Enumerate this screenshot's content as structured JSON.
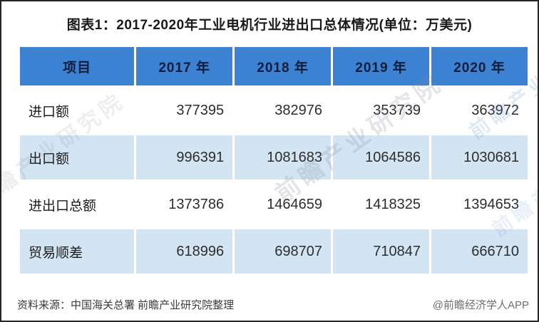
{
  "title": "图表1：2017-2020年工业电机行业进出口总体情况(单位：万美元)",
  "colors": {
    "header_bg": "#3c82d2",
    "header_text": "#0e1d3a",
    "alt_row_bg": "#d3e4f2",
    "row_bg": "#ffffff",
    "body_text": "#2d2d2d",
    "title_text": "#1a1a1a",
    "border": "#262626"
  },
  "watermark": {
    "text": "前瞻产业研究院"
  },
  "chart_data": {
    "type": "table",
    "title": "图表1：2017-2020年工业电机行业进出口总体情况",
    "unit": "万美元",
    "columns": [
      "项目",
      "2017 年",
      "2018 年",
      "2019 年",
      "2020 年"
    ],
    "rows": [
      {
        "label": "进口额",
        "values": [
          377395,
          382976,
          353739,
          363972
        ]
      },
      {
        "label": "出口额",
        "values": [
          996391,
          1081683,
          1064586,
          1030681
        ]
      },
      {
        "label": "进出口总额",
        "values": [
          1373786,
          1464659,
          1418325,
          1394653
        ]
      },
      {
        "label": "贸易顺差",
        "values": [
          618996,
          698707,
          710847,
          666710
        ]
      }
    ]
  },
  "footer": {
    "source": "资料来源：中国海关总署 前瞻产业研究院整理",
    "credit": "@前瞻经济学人APP"
  }
}
